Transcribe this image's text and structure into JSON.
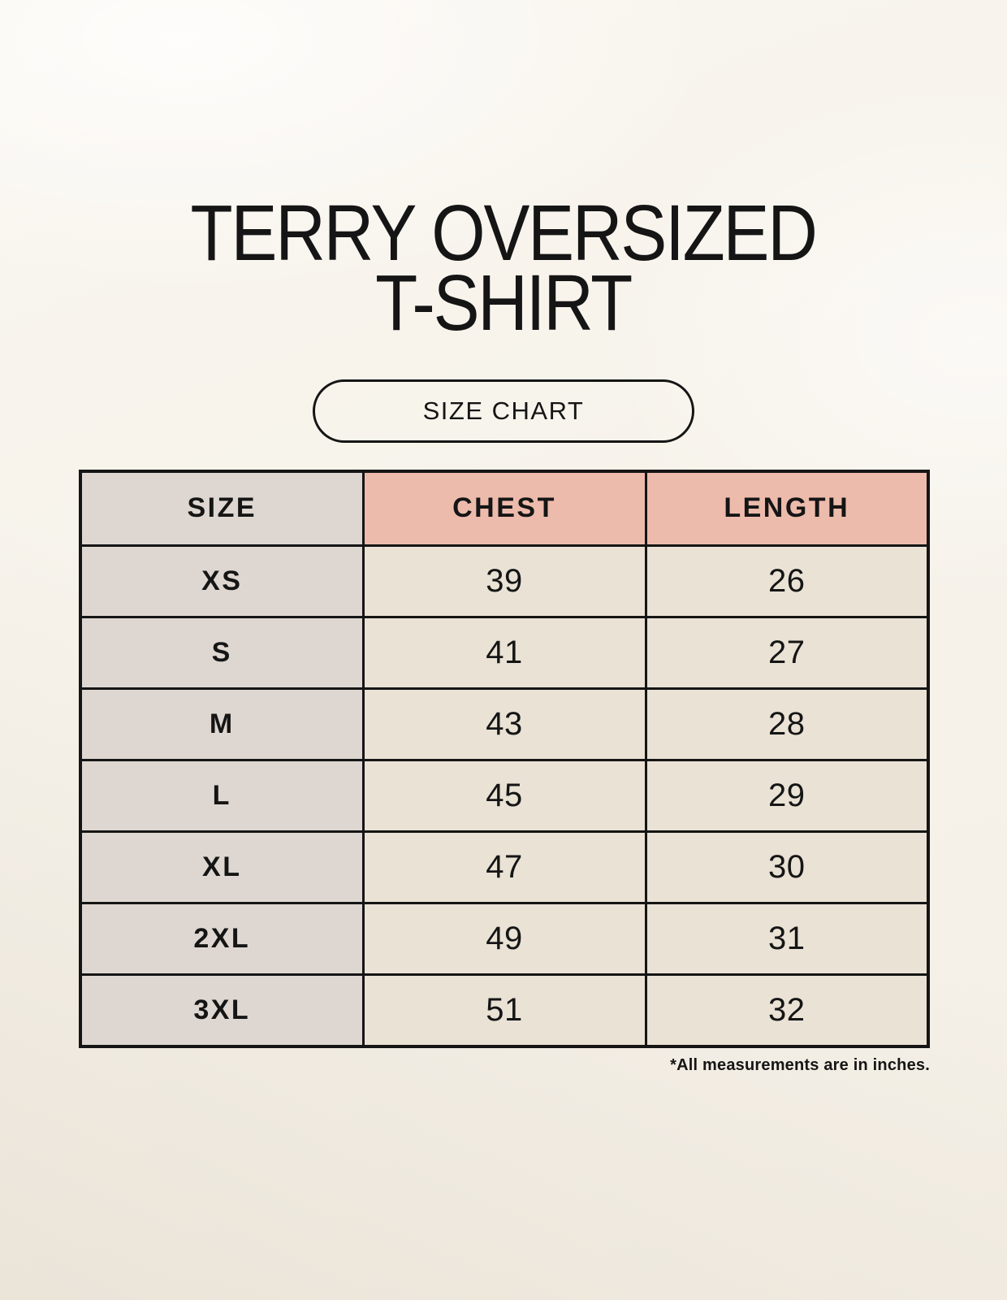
{
  "header": {
    "title_line1": "TERRY OVERSIZED",
    "title_line2": "T-SHIRT",
    "size_chart_label": "SIZE CHART"
  },
  "table": {
    "columns": [
      "SIZE",
      "CHEST",
      "LENGTH"
    ],
    "rows": [
      {
        "size": "XS",
        "chest": "39",
        "length": "26"
      },
      {
        "size": "S",
        "chest": "41",
        "length": "27"
      },
      {
        "size": "M",
        "chest": "43",
        "length": "28"
      },
      {
        "size": "L",
        "chest": "45",
        "length": "29"
      },
      {
        "size": "XL",
        "chest": "47",
        "length": "30"
      },
      {
        "size": "2XL",
        "chest": "49",
        "length": "31"
      },
      {
        "size": "3XL",
        "chest": "51",
        "length": "32"
      }
    ]
  },
  "footer": {
    "note": "*All measurements are in inches."
  },
  "colors": {
    "page_bg": "#f6f2ea",
    "size_col_bg": "#ded7d1",
    "accent_header_bg": "#edbbac",
    "value_cell_bg": "#e9e2d5",
    "border": "#151515",
    "text": "#151515"
  }
}
